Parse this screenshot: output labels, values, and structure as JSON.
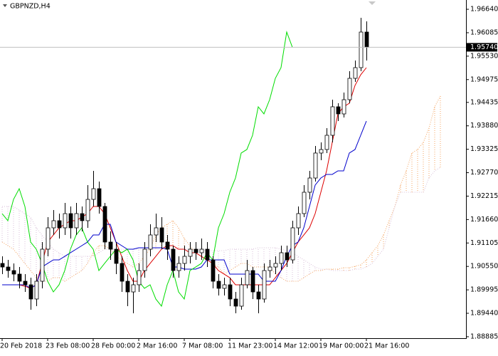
{
  "chart_data": {
    "type": "candlestick",
    "title": "GBPNZD,H4",
    "categories": [
      "20 Feb 2018",
      null,
      null,
      null,
      null,
      null,
      null,
      null,
      "23 Feb 08:00",
      null,
      null,
      null,
      null,
      null,
      null,
      null,
      "28 Feb 00:00",
      null,
      null,
      null,
      null,
      null,
      null,
      null,
      "2 Mar 16:00",
      null,
      null,
      null,
      null,
      null,
      null,
      null,
      "7 Mar 08:00",
      null,
      null,
      null,
      null,
      null,
      null,
      null,
      "11 Mar 23:00",
      null,
      null,
      null,
      null,
      null,
      null,
      null,
      "14 Mar 12:00",
      null,
      null,
      null,
      null,
      null,
      null,
      null,
      "19 Mar 00:00",
      null,
      null,
      null,
      null,
      null,
      null,
      null,
      "21 Mar 16:00",
      null,
      null,
      null,
      null,
      null,
      null,
      null,
      null,
      null,
      null,
      null,
      null,
      null
    ],
    "candles": {
      "color": "#000000",
      "bull_fill": "#ffffff",
      "open": [
        1.90621,
        1.90536,
        1.90452,
        1.90368,
        1.90199,
        1.90115,
        1.89778,
        1.90199,
        1.90958,
        1.91464,
        1.91633,
        1.91464,
        1.91801,
        1.91464,
        1.91801,
        1.91633,
        1.92138,
        1.92391,
        1.9197,
        1.91127,
        1.90958,
        1.90621,
        1.90199,
        1.89946,
        1.90115,
        1.90452,
        1.90958,
        1.91295,
        1.91464,
        1.91127,
        1.90958,
        1.90452,
        1.90621,
        1.90789,
        1.90958,
        1.90874,
        1.90958,
        1.90705,
        1.90199,
        1.90031,
        1.90115,
        1.89778,
        1.89609,
        1.90115,
        1.90452,
        1.89946,
        1.89778,
        1.90452,
        1.90536,
        1.90621,
        1.90874,
        1.90705,
        1.91464,
        1.91801,
        1.92307,
        1.92644,
        1.93235,
        1.93319,
        1.93656,
        1.94331,
        1.94162,
        1.94499,
        1.95005,
        1.95258,
        1.96101,
        null,
        null,
        null,
        null,
        null,
        null,
        null,
        null,
        null,
        null,
        null,
        null,
        null
      ],
      "high": [
        1.90789,
        1.90705,
        1.90621,
        1.90536,
        1.90368,
        1.90283,
        1.90368,
        1.91127,
        1.91717,
        1.91885,
        1.91801,
        1.92054,
        1.9197,
        1.92054,
        1.9197,
        1.92476,
        1.92813,
        1.9256,
        1.92054,
        1.9138,
        1.91127,
        1.90789,
        1.90368,
        1.90283,
        1.90621,
        1.91127,
        1.91548,
        1.91801,
        1.91717,
        1.91295,
        1.91042,
        1.90789,
        1.91042,
        1.91127,
        1.91127,
        1.91211,
        1.91127,
        1.90789,
        1.90368,
        1.90283,
        1.90283,
        1.89946,
        1.90283,
        1.90705,
        1.90536,
        1.90115,
        1.90621,
        1.90705,
        1.90789,
        1.91042,
        1.91042,
        1.91633,
        1.9197,
        1.92476,
        1.92813,
        1.93403,
        1.93487,
        1.93825,
        1.94499,
        1.94415,
        1.94668,
        1.95174,
        1.95427,
        1.96438,
        1.96354,
        null,
        null,
        null,
        null,
        null,
        null,
        null,
        null,
        null,
        null,
        null,
        null,
        null
      ],
      "low": [
        1.90368,
        1.90283,
        1.90199,
        1.90031,
        1.89946,
        1.89525,
        1.89609,
        1.90031,
        1.90789,
        1.91295,
        1.91211,
        1.91295,
        1.91211,
        1.91295,
        1.9138,
        1.91464,
        1.9197,
        1.91801,
        1.90958,
        1.90705,
        1.90368,
        1.89946,
        1.89609,
        1.8944,
        1.89946,
        1.90283,
        1.90789,
        1.91127,
        1.90958,
        1.90705,
        1.90283,
        1.90283,
        1.90452,
        1.90621,
        1.90705,
        1.90705,
        1.90536,
        1.90031,
        1.89862,
        1.89862,
        1.89609,
        1.8944,
        1.89525,
        1.90031,
        1.89778,
        1.8944,
        1.89693,
        1.90283,
        1.90368,
        1.90452,
        1.90536,
        1.90621,
        1.91295,
        1.91717,
        1.92138,
        1.9256,
        1.93066,
        1.93235,
        1.93487,
        1.93993,
        1.94078,
        1.94415,
        1.94921,
        1.95174,
        1.95427,
        null,
        null,
        null,
        null,
        null,
        null,
        null,
        null,
        null,
        null,
        null,
        null,
        null
      ],
      "close": [
        1.90536,
        1.90452,
        1.90368,
        1.90199,
        1.90115,
        1.89778,
        1.90199,
        1.90958,
        1.91464,
        1.91633,
        1.91464,
        1.91801,
        1.91464,
        1.91801,
        1.91633,
        1.92138,
        1.92391,
        1.9197,
        1.91127,
        1.90958,
        1.90621,
        1.90199,
        1.89946,
        1.90115,
        1.90452,
        1.90958,
        1.91295,
        1.91464,
        1.91127,
        1.90958,
        1.90452,
        1.90621,
        1.90789,
        1.90958,
        1.90874,
        1.90958,
        1.90705,
        1.90199,
        1.90031,
        1.90115,
        1.89778,
        1.89609,
        1.90115,
        1.90452,
        1.89946,
        1.89778,
        1.90452,
        1.90536,
        1.90621,
        1.90874,
        1.90705,
        1.91464,
        1.91801,
        1.92307,
        1.92644,
        1.93235,
        1.93319,
        1.93656,
        1.94331,
        1.94162,
        1.94499,
        1.95005,
        1.95258,
        1.96101,
        1.9574,
        null,
        null,
        null,
        null,
        null,
        null,
        null,
        null,
        null,
        null,
        null,
        null,
        null
      ]
    },
    "cloud": {
      "span_a": {
        "color": "#f4a460",
        "values": [
          1.91127,
          1.91042,
          1.90958,
          1.90789,
          1.90621,
          1.90452,
          1.90283,
          1.90199,
          1.90199,
          1.90283,
          1.90283,
          1.90199,
          1.90283,
          1.90368,
          1.90452,
          1.90621,
          1.90874,
          1.91042,
          1.91042,
          1.90958,
          1.90789,
          1.90705,
          1.90621,
          1.90536,
          1.90621,
          1.90789,
          1.90958,
          1.91295,
          1.91464,
          1.91548,
          1.91633,
          1.91464,
          1.91211,
          1.91042,
          1.90874,
          1.90789,
          1.90705,
          1.90621,
          1.90536,
          1.90368,
          1.90452,
          1.90536,
          1.90621,
          1.90621,
          1.90536,
          1.90536,
          1.90536,
          1.90536,
          1.90368,
          1.90283,
          1.90199,
          1.90199,
          1.90199,
          1.90283,
          1.90368,
          1.90452,
          1.90452,
          1.90486,
          1.90486,
          1.90486,
          1.9052,
          1.9052,
          1.90553,
          1.90587,
          1.90705,
          1.90874,
          1.91042,
          1.91295,
          1.91633,
          1.9197,
          1.92476,
          1.92813,
          1.93235,
          1.93319,
          1.93487,
          1.93825,
          1.94331,
          1.94583
        ]
      },
      "span_b": {
        "color": "#d8bfd8",
        "values": [
          1.9197,
          1.9197,
          1.9197,
          1.91885,
          1.91801,
          1.91717,
          1.91464,
          1.91295,
          1.91127,
          1.90958,
          1.90874,
          1.90789,
          1.90789,
          1.90789,
          1.90789,
          1.90789,
          1.90789,
          1.90874,
          1.90958,
          1.90958,
          1.90958,
          1.90958,
          1.90958,
          1.90958,
          1.90958,
          1.90958,
          1.90958,
          1.90958,
          1.90958,
          1.90958,
          1.90958,
          1.90958,
          1.90958,
          1.90958,
          1.90958,
          1.90958,
          1.90924,
          1.90924,
          1.90924,
          1.90924,
          1.90958,
          1.90958,
          1.90958,
          1.90958,
          1.90958,
          1.90992,
          1.90992,
          1.90992,
          1.90992,
          1.90958,
          1.90924,
          1.90874,
          1.90789,
          1.90705,
          1.90621,
          1.90536,
          1.90486,
          1.90486,
          1.90452,
          1.90452,
          1.90452,
          1.90452,
          1.90486,
          1.90486,
          1.90536,
          1.90621,
          1.90789,
          1.90958,
          1.91464,
          1.9197,
          1.92307,
          1.92307,
          1.92307,
          1.92307,
          1.92307,
          1.92644,
          1.92813,
          1.92897
        ]
      }
    },
    "lines": [
      {
        "color": "#dd0000",
        "values": [
          1.90115,
          1.90115,
          1.90115,
          1.90115,
          1.90081,
          1.90031,
          1.90115,
          1.90621,
          1.91127,
          1.91295,
          1.91464,
          1.91548,
          1.91633,
          1.91633,
          1.91717,
          1.91801,
          1.9197,
          1.9197,
          1.91801,
          1.91464,
          1.91127,
          1.90789,
          1.90452,
          1.90199,
          1.90199,
          1.90452,
          1.90621,
          1.90789,
          1.90958,
          1.91042,
          1.91042,
          1.90958,
          1.90958,
          1.90874,
          1.90874,
          1.90789,
          1.90705,
          1.90621,
          1.90452,
          1.90368,
          1.90283,
          1.90115,
          1.90115,
          1.90115,
          1.90115,
          1.90115,
          1.90115,
          1.90115,
          1.90283,
          1.90452,
          1.90621,
          1.90874,
          1.91127,
          1.91295,
          1.91464,
          1.91801,
          1.92307,
          1.92813,
          1.93487,
          1.94162,
          1.94331,
          1.94415,
          1.94836,
          1.95089,
          1.95258,
          null,
          null,
          null,
          null,
          null,
          null,
          null,
          null,
          null,
          null,
          null,
          null,
          null
        ]
      },
      {
        "color": "#0000cc",
        "values": [
          1.90115,
          1.90115,
          1.90115,
          1.90115,
          1.90115,
          1.90031,
          1.90115,
          1.90536,
          1.90621,
          1.90705,
          1.90705,
          1.90789,
          1.90874,
          1.90958,
          1.91042,
          1.91127,
          1.91295,
          1.91295,
          1.91548,
          1.91548,
          1.91127,
          1.91042,
          1.90958,
          1.90958,
          1.90992,
          1.90992,
          1.90992,
          1.90992,
          1.90992,
          1.90958,
          1.90536,
          1.90536,
          1.90486,
          1.90486,
          1.90486,
          1.90536,
          1.90705,
          1.90705,
          1.90705,
          1.90705,
          1.90368,
          1.90368,
          1.90368,
          1.90368,
          1.90368,
          1.90368,
          1.90199,
          1.90199,
          1.90199,
          1.90452,
          1.90789,
          1.91042,
          1.91127,
          1.91464,
          1.9197,
          1.92476,
          1.92644,
          1.92729,
          1.92729,
          1.92813,
          1.92813,
          1.93235,
          1.93319,
          1.93656,
          1.93993,
          null,
          null,
          null,
          null,
          null,
          null,
          null,
          null,
          null,
          null,
          null,
          null,
          null
        ]
      },
      {
        "color": "#00dd00",
        "values": [
          1.91801,
          1.91633,
          1.92138,
          1.92391,
          1.9197,
          1.91127,
          1.90958,
          1.90621,
          1.90199,
          1.89946,
          1.90115,
          1.90452,
          1.90958,
          1.91295,
          1.91464,
          1.91127,
          1.90958,
          1.90452,
          1.90621,
          1.90789,
          1.90958,
          1.90874,
          1.90958,
          1.90705,
          1.90199,
          1.90031,
          1.90115,
          1.89778,
          1.89609,
          1.90115,
          1.90452,
          1.89946,
          1.89778,
          1.90452,
          1.90536,
          1.90621,
          1.90874,
          1.90705,
          1.91464,
          1.91801,
          1.92307,
          1.92644,
          1.93235,
          1.93319,
          1.93656,
          1.94331,
          1.94162,
          1.94499,
          1.95005,
          1.95258,
          1.96101,
          1.9574,
          null,
          null,
          null,
          null,
          null,
          null,
          null,
          null,
          null,
          null,
          null,
          null,
          null,
          null,
          null,
          null,
          null,
          null,
          null,
          null,
          null,
          null,
          null,
          null
        ]
      }
    ],
    "current_price": {
      "value": 1.9574,
      "label": "1.95740"
    },
    "current_price_color": "#c0c0c0",
    "ylim": [
      1.8885,
      1.9686
    ],
    "yticks": [
      {
        "value": 1.9664,
        "label": "1.96640"
      },
      1.96085,
      {
        "value": 1.9553,
        "label": "1.95530"
      },
      1.94975,
      1.94435,
      {
        "value": 1.9388,
        "label": "1.93880"
      },
      1.93325,
      {
        "value": 1.9277,
        "label": "1.92770"
      },
      1.92215,
      {
        "value": 1.9166,
        "label": "1.91660"
      },
      1.91105,
      {
        "value": 1.9055,
        "label": "1.90550"
      },
      1.89995,
      {
        "value": 1.8944,
        "label": "1.89440"
      },
      1.88885
    ]
  }
}
